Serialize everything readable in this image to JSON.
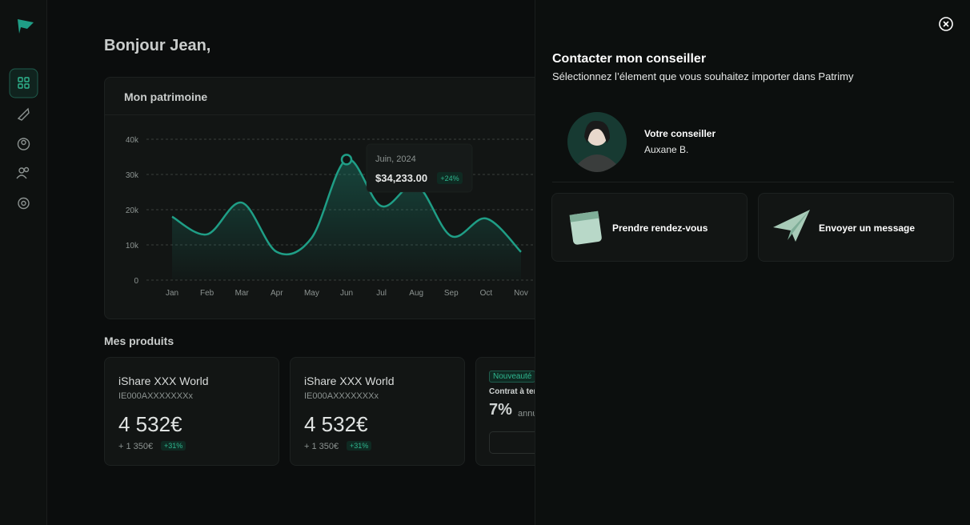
{
  "greeting": "Bonjour Jean,",
  "chart_data": {
    "type": "line",
    "title": "Mon patrimoine",
    "categories": [
      "Jan",
      "Feb",
      "Mar",
      "Apr",
      "May",
      "Jun",
      "Jul",
      "Aug",
      "Sep",
      "Oct",
      "Nov"
    ],
    "values": [
      18000,
      13000,
      22000,
      8000,
      12000,
      34233,
      21000,
      27000,
      12500,
      17500,
      8000
    ],
    "color": "#1f9e86",
    "ylim": [
      0,
      40000
    ],
    "yticks": [
      {
        "value": 0,
        "label": "0"
      },
      {
        "value": 10000,
        "label": "10k"
      },
      {
        "value": 20000,
        "label": "20k"
      },
      {
        "value": 30000,
        "label": "30k"
      },
      {
        "value": 40000,
        "label": "40k"
      }
    ],
    "grid": true,
    "tooltip": {
      "date": "Juin, 2024",
      "value_label": "$34,233.00",
      "change": "+24%"
    }
  },
  "products": {
    "title": "Mes produits",
    "items": [
      {
        "name": "iShare XXX World",
        "isin": "IE000AXXXXXXXx",
        "amount": "4 532€",
        "gain": "+ 1 350€",
        "change": "+31%"
      },
      {
        "name": "iShare XXX World",
        "isin": "IE000AXXXXXXXx",
        "amount": "4 532€",
        "gain": "+ 1 350€",
        "change": "+31%"
      }
    ],
    "promo": {
      "badge": "Nouveauté",
      "name": "Contrat à ter",
      "rate": "7%",
      "rate_note": "annu"
    }
  },
  "drawer": {
    "title": "Contacter mon conseiller",
    "subtitle": "Sélectionnez l’élement que vous souhaitez importer dans Patrimy",
    "advisor": {
      "role": "Votre conseiller",
      "name": "Auxane B."
    },
    "actions": [
      "Prendre rendez-vous",
      "Envoyer un message"
    ]
  }
}
